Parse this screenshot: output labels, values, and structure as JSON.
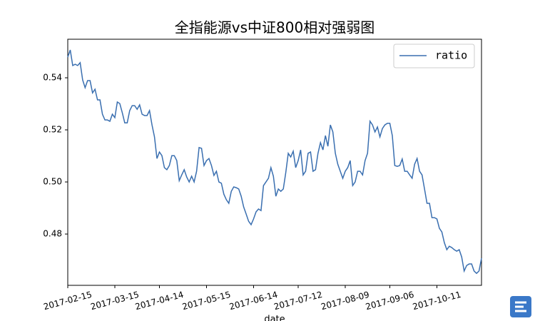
{
  "chart_data": {
    "type": "line",
    "title": "全指能源vs中证800相对强弱图",
    "x_label": "date",
    "categories": [
      "2017-02-15",
      null,
      null,
      null,
      null,
      null,
      null,
      null,
      null,
      null,
      null,
      null,
      null,
      null,
      null,
      null,
      null,
      null,
      null,
      "2017-03-15",
      null,
      null,
      null,
      null,
      null,
      null,
      null,
      null,
      null,
      null,
      null,
      null,
      null,
      null,
      null,
      null,
      null,
      "2017-04-14",
      null,
      null,
      null,
      null,
      null,
      null,
      null,
      null,
      null,
      null,
      null,
      null,
      null,
      null,
      null,
      null,
      null,
      null,
      "2017-05-15",
      null,
      null,
      null,
      null,
      null,
      null,
      null,
      null,
      null,
      null,
      null,
      null,
      null,
      null,
      null,
      null,
      null,
      null,
      "2017-06-14",
      null,
      null,
      null,
      null,
      null,
      null,
      null,
      null,
      null,
      null,
      null,
      null,
      null,
      null,
      null,
      null,
      null,
      "2017-07-12",
      null,
      null,
      null,
      null,
      null,
      null,
      null,
      null,
      null,
      null,
      null,
      null,
      null,
      null,
      null,
      null,
      null,
      null,
      "2017-08-09",
      null,
      null,
      null,
      null,
      null,
      null,
      null,
      null,
      null,
      null,
      null,
      null,
      null,
      null,
      null,
      null,
      null,
      "2017-09-06",
      null,
      null,
      null,
      null,
      null,
      null,
      null,
      null,
      null,
      null,
      null,
      null,
      null,
      null,
      null,
      null,
      null,
      null,
      "2017-10-11",
      null,
      null,
      null,
      null,
      null,
      null,
      null,
      null,
      null,
      null,
      null,
      null,
      null,
      null,
      null,
      null,
      null,
      null
    ],
    "series": [
      {
        "name": "ratio",
        "color": "#3a6fb0",
        "values": [
          0.5479,
          0.5507,
          0.5447,
          0.5452,
          0.5447,
          0.5458,
          0.5392,
          0.5362,
          0.5389,
          0.5389,
          0.5342,
          0.5356,
          0.5315,
          0.5315,
          0.526,
          0.5238,
          0.5238,
          0.5233,
          0.526,
          0.5247,
          0.5307,
          0.5301,
          0.5266,
          0.5227,
          0.5227,
          0.5274,
          0.5293,
          0.5293,
          0.5279,
          0.5296,
          0.526,
          0.5255,
          0.5255,
          0.5274,
          0.5219,
          0.5173,
          0.509,
          0.5115,
          0.5101,
          0.5055,
          0.5047,
          0.5063,
          0.5101,
          0.5101,
          0.5082,
          0.5005,
          0.5027,
          0.5047,
          0.5019,
          0.5,
          0.5022,
          0.5,
          0.5041,
          0.5132,
          0.5129,
          0.5063,
          0.5082,
          0.509,
          0.5063,
          0.5025,
          0.5041,
          0.5,
          0.4995,
          0.4953,
          0.4932,
          0.4918,
          0.4964,
          0.4981,
          0.4978,
          0.4973,
          0.4945,
          0.4904,
          0.4877,
          0.4849,
          0.4836,
          0.4858,
          0.4885,
          0.4896,
          0.489,
          0.4986,
          0.5,
          0.5014,
          0.5055,
          0.5022,
          0.4945,
          0.4973,
          0.4964,
          0.4973,
          0.5036,
          0.511,
          0.5096,
          0.5118,
          0.5055,
          0.5082,
          0.5123,
          0.5027,
          0.5041,
          0.511,
          0.5115,
          0.5041,
          0.5047,
          0.511,
          0.5151,
          0.5123,
          0.5178,
          0.5137,
          0.5219,
          0.5192,
          0.511,
          0.5068,
          0.5041,
          0.5014,
          0.5041,
          0.5055,
          0.5082,
          0.4986,
          0.5,
          0.5041,
          0.5041,
          0.5027,
          0.5082,
          0.511,
          0.5233,
          0.5219,
          0.5192,
          0.5211,
          0.5173,
          0.5205,
          0.5219,
          0.5225,
          0.5225,
          0.5178,
          0.5063,
          0.506,
          0.5063,
          0.5088,
          0.5041,
          0.5041,
          0.5027,
          0.5014,
          0.5068,
          0.509,
          0.5041,
          0.5027,
          0.4973,
          0.4918,
          0.4918,
          0.4863,
          0.4863,
          0.4858,
          0.4822,
          0.4808,
          0.4767,
          0.474,
          0.4753,
          0.4748,
          0.474,
          0.4734,
          0.474,
          0.4712,
          0.4658,
          0.4679,
          0.4685,
          0.4685,
          0.4658,
          0.4649,
          0.4658,
          0.4707
        ]
      }
    ],
    "ylim": [
      0.4603,
      0.5548
    ],
    "yticks": [
      0.48,
      {
        "value": 0.5,
        "label": "0.50"
      },
      0.52,
      0.54
    ],
    "grid": false,
    "legend": "upper right"
  }
}
